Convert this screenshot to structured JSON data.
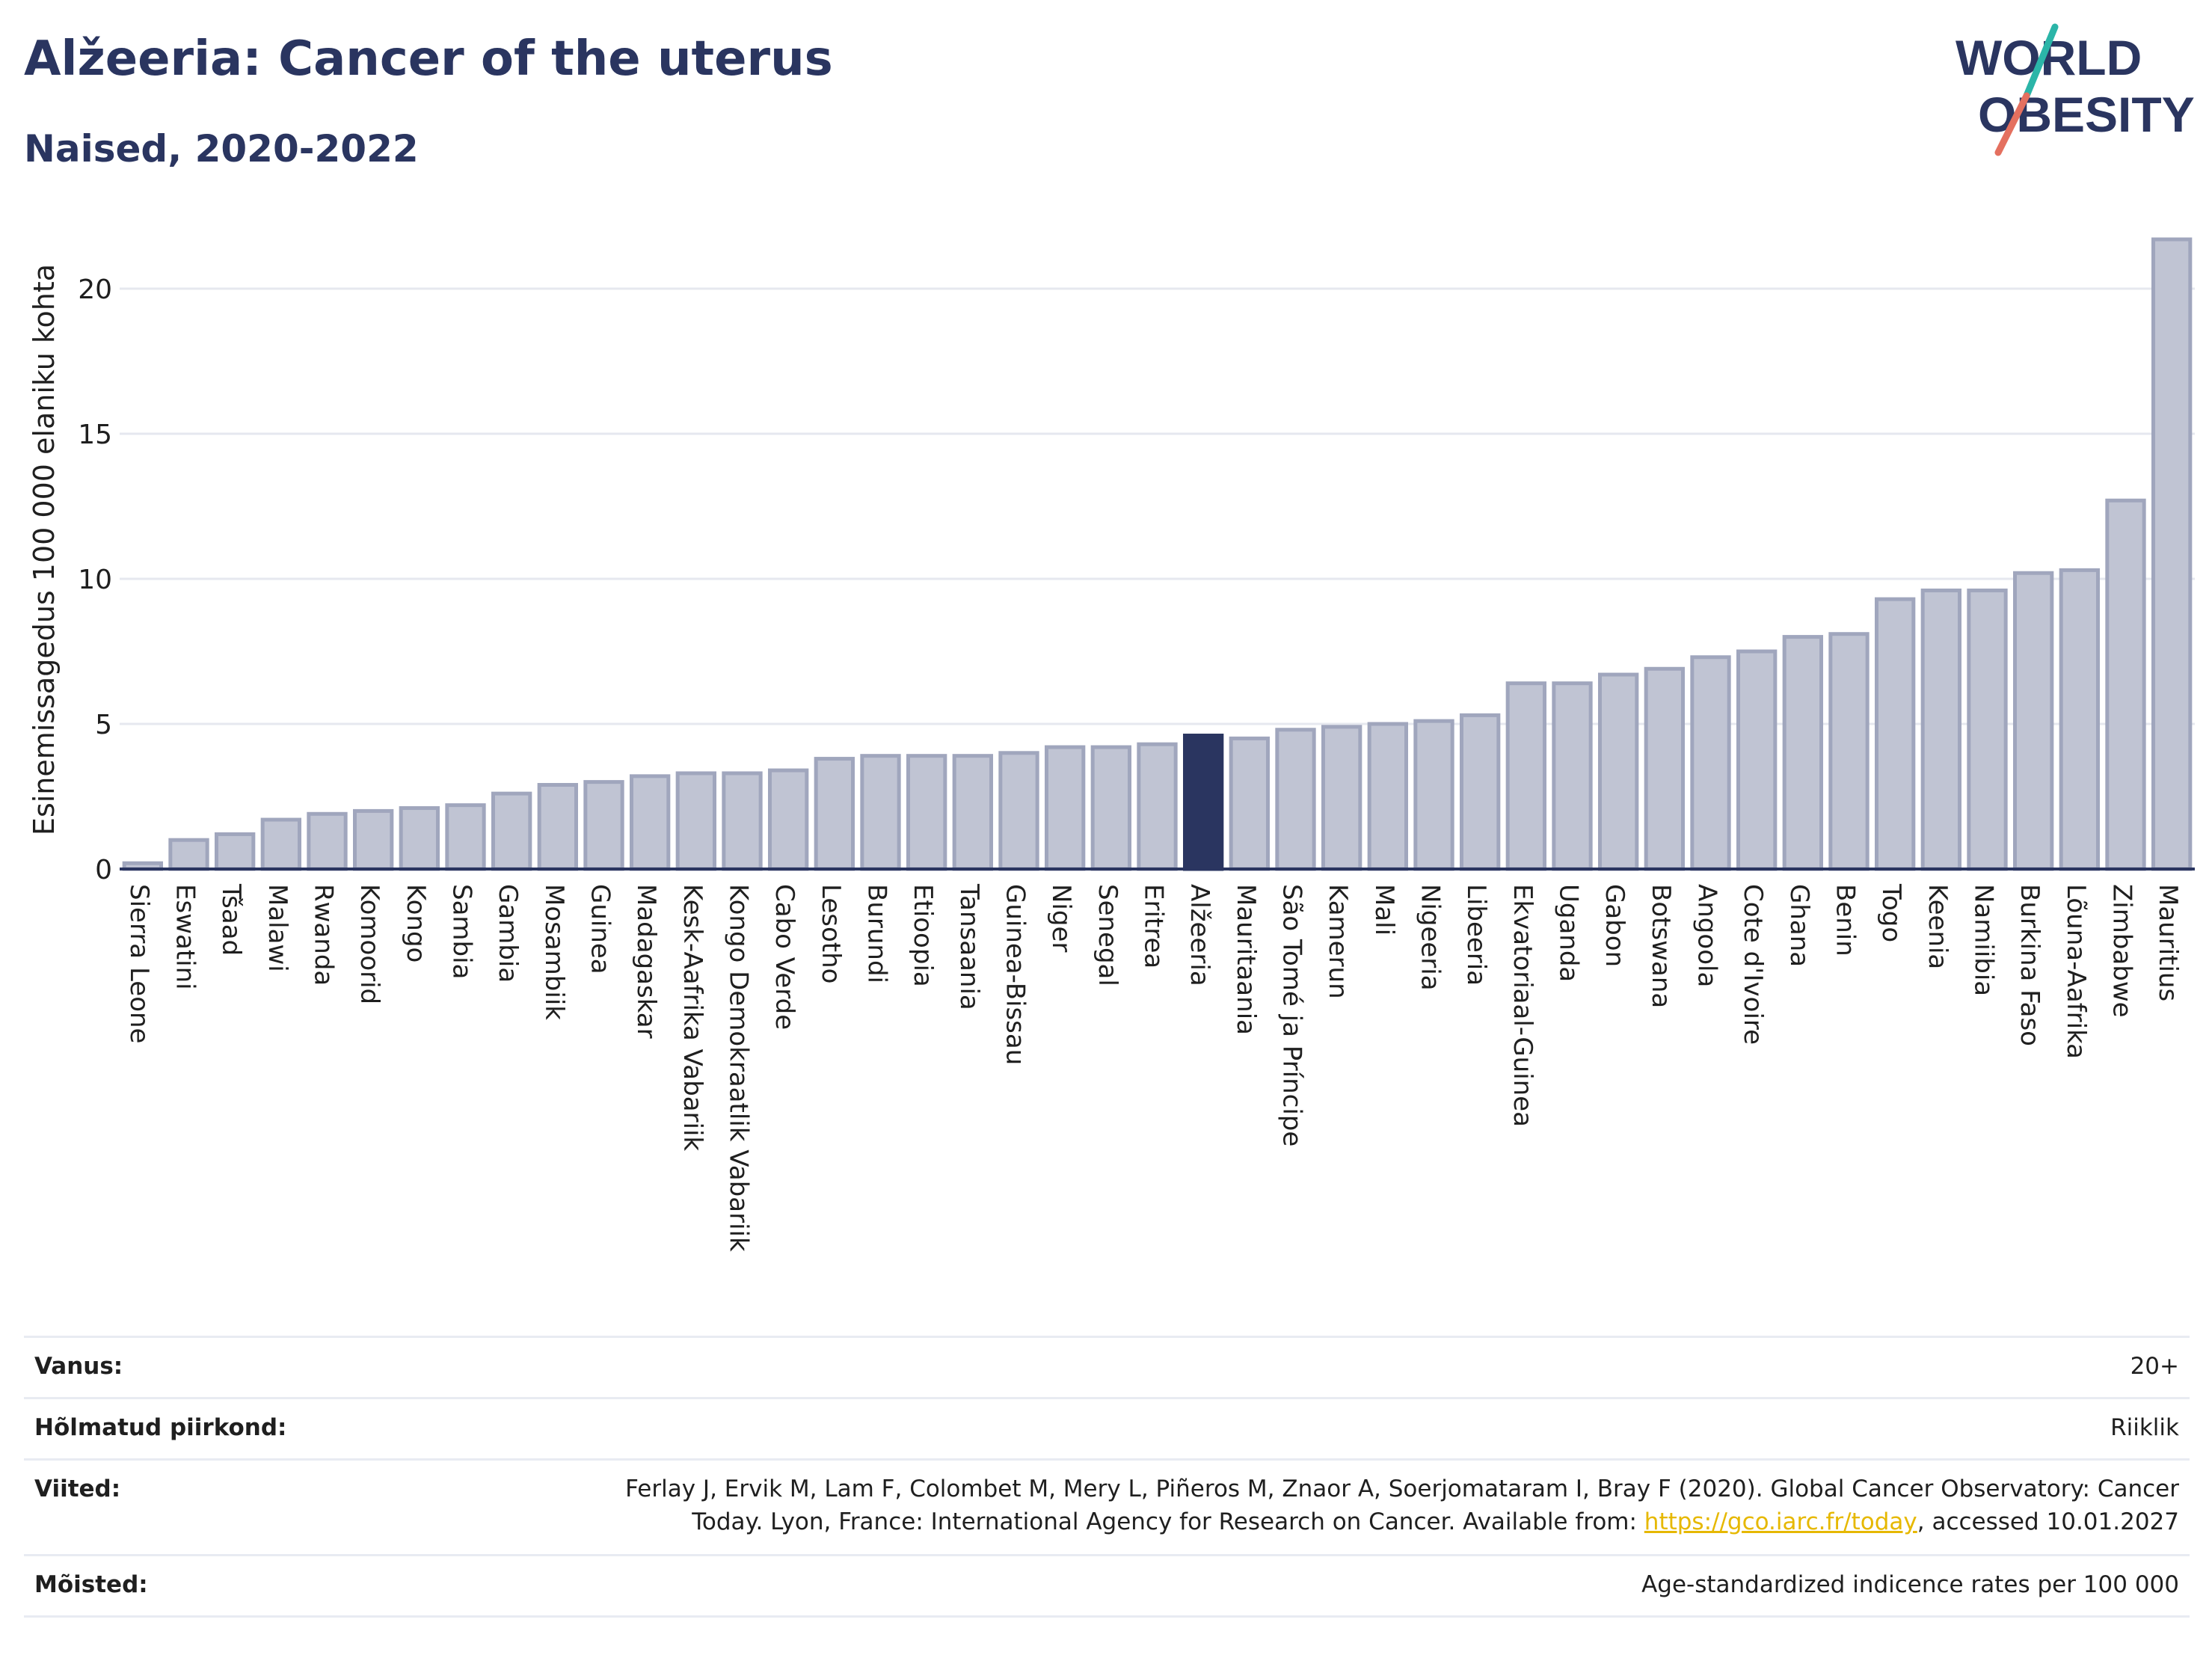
{
  "title": "Alžeeria: Cancer of the uterus",
  "subtitle": "Naised, 2020-2022",
  "logo": {
    "line1": "WORLD",
    "line2": "OBESITY",
    "icon": "world-obesity-logo"
  },
  "colors": {
    "bar": "#c0c4d3",
    "bar_border": "#a0a6bd",
    "highlight": "#2a3560",
    "text": "#2a3560",
    "grid": "#e6e8ef",
    "link": "#e6b800"
  },
  "chart_data": {
    "type": "bar",
    "ylabel": "Esinemissagedus 100 000 elaniku kohta",
    "ylim": [
      0,
      22.5
    ],
    "yticks": [
      0,
      5,
      10,
      15,
      20
    ],
    "grid": true,
    "highlight": "Alžeeria",
    "categories": [
      "Sierra Leone",
      "Eswatini",
      "Tšaad",
      "Malawi",
      "Rwanda",
      "Komoorid",
      "Kongo",
      "Sambia",
      "Gambia",
      "Mosambiik",
      "Guinea",
      "Madagaskar",
      "Kesk-Aafrika Vabariik",
      "Kongo Demokraatlik Vabariik",
      "Cabo Verde",
      "Lesotho",
      "Burundi",
      "Etioopia",
      "Tansaania",
      "Guinea-Bissau",
      "Niger",
      "Senegal",
      "Eritrea",
      "Alžeeria",
      "Mauritaania",
      "São Tomé ja Príncipe",
      "Kamerun",
      "Mali",
      "Nigeeria",
      "Libeeria",
      "Ekvatoriaal-Guinea",
      "Uganda",
      "Gabon",
      "Botswana",
      "Angoola",
      "Cote d'Ivoire",
      "Ghana",
      "Benin",
      "Togo",
      "Keenia",
      "Namiibia",
      "Burkina Faso",
      "Lõuna-Aafrika",
      "Zimbabwe",
      "Mauritius"
    ],
    "values": [
      0.2,
      1.0,
      1.2,
      1.7,
      1.9,
      2.0,
      2.1,
      2.2,
      2.6,
      2.9,
      3.0,
      3.2,
      3.3,
      3.3,
      3.4,
      3.8,
      3.9,
      3.9,
      3.9,
      4.0,
      4.2,
      4.2,
      4.3,
      4.6,
      4.5,
      4.8,
      4.9,
      5.0,
      5.1,
      5.3,
      6.4,
      6.4,
      6.7,
      6.9,
      7.3,
      7.5,
      8.0,
      8.1,
      9.3,
      9.6,
      9.6,
      10.2,
      10.3,
      12.7,
      21.7
    ]
  },
  "meta": {
    "age_label": "Vanus:",
    "age_value": "20+",
    "region_label": "Hõlmatud piirkond:",
    "region_value": "Riiklik",
    "refs_label": "Viited:",
    "refs_line1": "Ferlay J, Ervik M, Lam F, Colombet M, Mery L, Piñeros M, Znaor A, Soerjomataram I, Bray F (2020). Global Cancer Observatory: Cancer",
    "refs_line2_pre": "Today. Lyon, France: International Agency for Research on Cancer. Available from: ",
    "refs_link": "https://gco.iarc.fr/today",
    "refs_line2_post": ", accessed 10.01.2027",
    "defs_label": "Mõisted:",
    "defs_value": "Age-standardized indicence rates per 100 000"
  }
}
